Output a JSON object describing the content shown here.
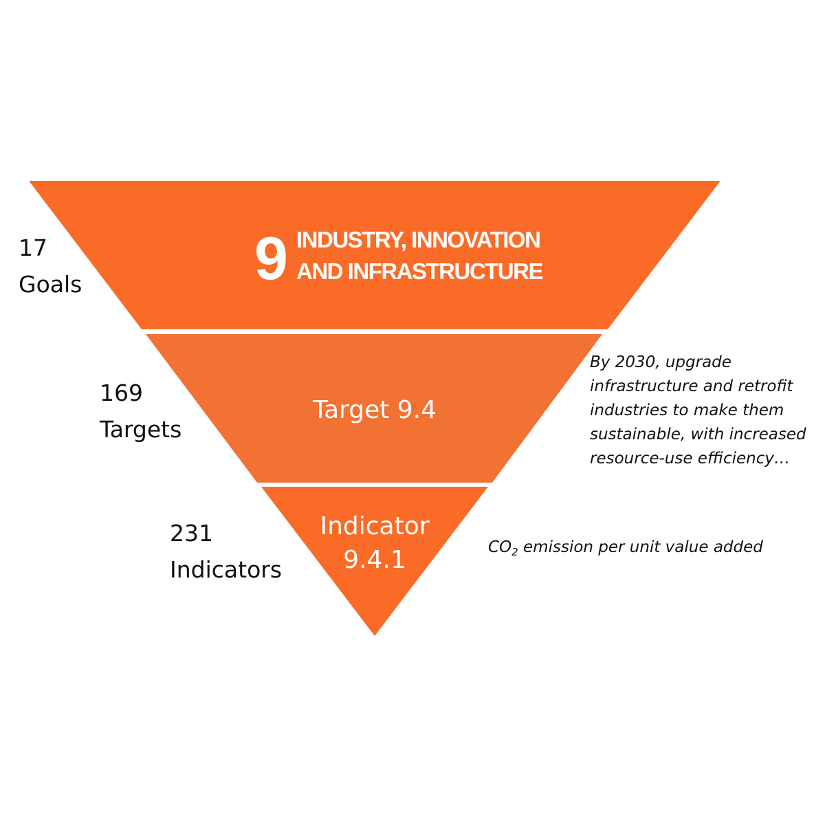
{
  "colors": {
    "goal_fill": "#f96b26",
    "target_fill": "#f27234",
    "indicator_fill": "#f96b26",
    "text_on_fill": "#ffffff",
    "text": "#111111"
  },
  "levels": {
    "goals": {
      "count": "17",
      "label": "Goals"
    },
    "targets": {
      "count": "169",
      "label": "Targets"
    },
    "indicators": {
      "count": "231",
      "label": "Indicators"
    }
  },
  "goal": {
    "number": "9",
    "title_line1": "INDUSTRY, INNOVATION",
    "title_line2": "AND INFRASTRUCTURE"
  },
  "target": {
    "label": "Target 9.4",
    "description_lines": [
      "By 2030, upgrade",
      "infrastructure and retrofit",
      "industries to make them",
      "sustainable, with increased",
      "resource-use efficiency…"
    ]
  },
  "indicator": {
    "label_line1": "Indicator",
    "label_line2": "9.4.1",
    "description_prefix": "CO",
    "description_subscript": "2",
    "description_suffix": " emission per unit value added"
  }
}
